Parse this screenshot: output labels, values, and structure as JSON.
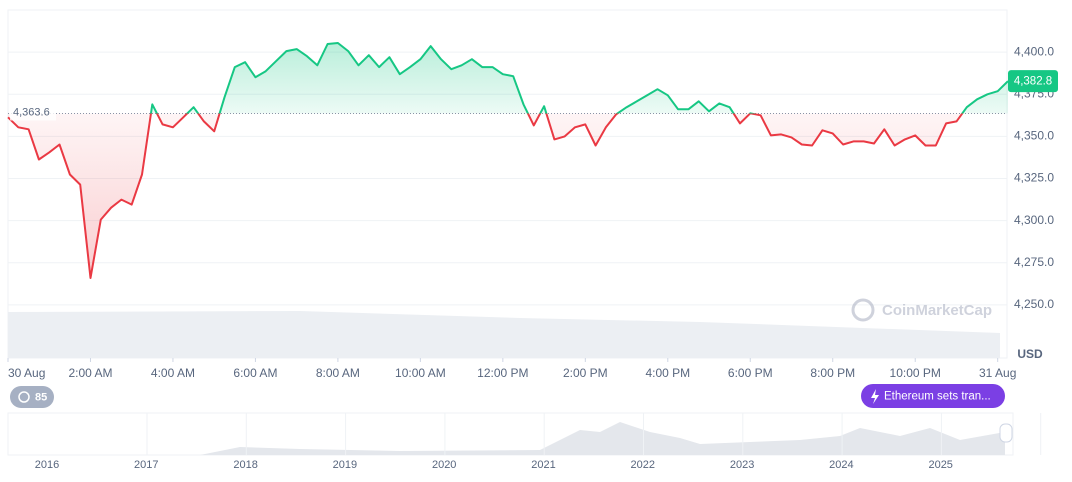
{
  "chart_data": {
    "type": "line",
    "x": [
      0,
      0.25,
      0.5,
      0.75,
      1,
      1.25,
      1.5,
      1.75,
      2,
      2.25,
      2.5,
      2.75,
      3,
      3.25,
      3.5,
      3.75,
      4,
      4.25,
      4.5,
      4.75,
      5,
      5.25,
      5.5,
      5.75,
      6,
      6.25,
      6.5,
      6.75,
      7,
      7.25,
      7.5,
      7.75,
      8,
      8.25,
      8.5,
      8.75,
      9,
      9.25,
      9.5,
      9.75,
      10,
      10.25,
      10.5,
      10.75,
      11,
      11.25,
      11.5,
      11.75,
      12,
      12.25,
      12.5,
      12.75,
      13,
      13.25,
      13.5,
      13.75,
      14,
      14.25,
      14.5,
      14.75,
      15,
      15.25,
      15.5,
      15.75,
      16,
      16.25,
      16.5,
      16.75,
      17,
      17.25,
      17.5,
      17.75,
      18,
      18.25,
      18.5,
      18.75,
      19,
      19.25,
      19.5,
      19.75,
      20,
      20.25,
      20.5,
      20.75,
      21,
      21.25,
      21.5,
      21.75,
      22,
      22.25,
      22.5,
      22.75,
      23,
      23.25,
      23.5,
      23.75,
      24,
      24.25
    ],
    "values": [
      4361.3,
      4355.4,
      4354.2,
      4336.3,
      4340.5,
      4345.2,
      4327.4,
      4321.4,
      4266,
      4300.6,
      4307.7,
      4312.5,
      4309.5,
      4327.4,
      4369,
      4357.1,
      4355.4,
      4361.3,
      4367.3,
      4358.9,
      4353,
      4373.2,
      4391.1,
      4394,
      4385.1,
      4388.7,
      4394.6,
      4400.6,
      4401.8,
      4397.6,
      4392.2,
      4404.8,
      4405.4,
      4400.6,
      4392.2,
      4398.2,
      4391.1,
      4397,
      4386.9,
      4391.1,
      4395.8,
      4403.6,
      4395.8,
      4389.9,
      4392.2,
      4395.8,
      4391.1,
      4391.1,
      4386.9,
      4385.7,
      4369,
      4356.5,
      4367.9,
      4348.2,
      4350,
      4355.4,
      4357.1,
      4344.6,
      4355.4,
      4363.1,
      4367.3,
      4370.8,
      4374.4,
      4378,
      4374.4,
      4366.1,
      4366.1,
      4370.8,
      4364.9,
      4369.6,
      4367.3,
      4357.7,
      4363.7,
      4362.5,
      4350.6,
      4351.2,
      4349.4,
      4345.2,
      4344.6,
      4353.6,
      4351.8,
      4345.2,
      4347,
      4347,
      4345.8,
      4354.2,
      4344.6,
      4348.2,
      4350.6,
      4344.6,
      4344.6,
      4357.7,
      4358.9,
      4367.3,
      4372,
      4375,
      4376.8,
      4382.8
    ],
    "up_color": "#16c784",
    "down_color": "#ea3943",
    "baseline": {
      "value": 4363.6,
      "label": "4,363.6"
    },
    "last_price": {
      "value": 4382.8,
      "label": "4,382.8"
    },
    "xlim": [
      0,
      24.25
    ],
    "xticks": [
      {
        "value": 0,
        "label": "30 Aug"
      },
      {
        "value": 2,
        "label": "2:00 AM"
      },
      {
        "value": 4,
        "label": "4:00 AM"
      },
      {
        "value": 6,
        "label": "6:00 AM"
      },
      {
        "value": 8,
        "label": "8:00 AM"
      },
      {
        "value": 10,
        "label": "10:00 AM"
      },
      {
        "value": 12,
        "label": "12:00 PM"
      },
      {
        "value": 14,
        "label": "2:00 PM"
      },
      {
        "value": 16,
        "label": "4:00 PM"
      },
      {
        "value": 18,
        "label": "6:00 PM"
      },
      {
        "value": 20,
        "label": "8:00 PM"
      },
      {
        "value": 22,
        "label": "10:00 PM"
      },
      {
        "value": 24,
        "label": "31 Aug"
      }
    ],
    "ylim": [
      4218.5,
      4425
    ],
    "yticks": [
      {
        "value": 4250,
        "label": "4,250.0"
      },
      {
        "value": 4275,
        "label": "4,275.0"
      },
      {
        "value": 4300,
        "label": "4,300.0"
      },
      {
        "value": 4325,
        "label": "4,325.0"
      },
      {
        "value": 4350,
        "label": "4,350.0"
      },
      {
        "value": 4375,
        "label": "4,375.0"
      },
      {
        "value": 4400,
        "label": "4,400.0"
      }
    ],
    "y_unit": "USD",
    "grid": true
  },
  "watermark": "CoinMarketCap",
  "history_count": 85,
  "event": "Ethereum sets tran...",
  "navigator_years": [
    "2016",
    "2017",
    "2018",
    "2019",
    "2020",
    "2021",
    "2022",
    "2023",
    "2024",
    "2025"
  ]
}
